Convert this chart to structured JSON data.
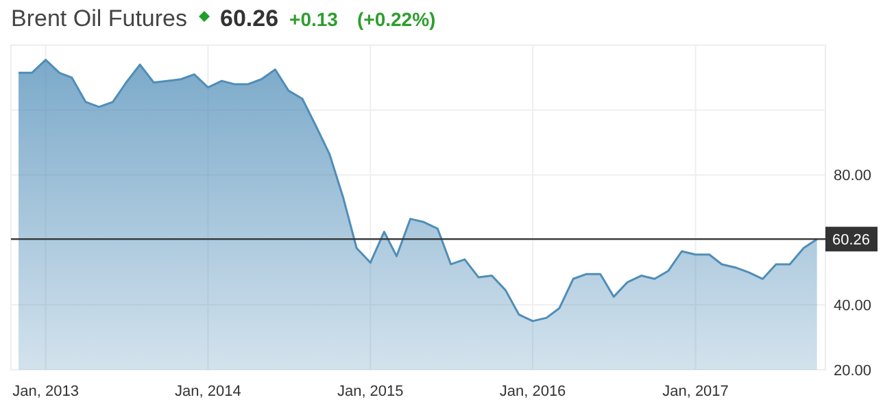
{
  "chart_data": {
    "type": "area",
    "title": "Brent Oil Futures",
    "annotations": [
      "60.26",
      "+0.13",
      "(+0.22%)"
    ],
    "x": [
      "2012-11",
      "2012-12",
      "2013-01",
      "2013-02",
      "2013-03",
      "2013-04",
      "2013-05",
      "2013-06",
      "2013-07",
      "2013-08",
      "2013-09",
      "2013-10",
      "2013-11",
      "2013-12",
      "2014-01",
      "2014-02",
      "2014-03",
      "2014-04",
      "2014-05",
      "2014-06",
      "2014-07",
      "2014-08",
      "2014-09",
      "2014-10",
      "2014-11",
      "2014-12",
      "2015-01",
      "2015-02",
      "2015-03",
      "2015-04",
      "2015-05",
      "2015-06",
      "2015-07",
      "2015-08",
      "2015-09",
      "2015-10",
      "2015-11",
      "2015-12",
      "2016-01",
      "2016-02",
      "2016-03",
      "2016-04",
      "2016-05",
      "2016-06",
      "2016-07",
      "2016-08",
      "2016-09",
      "2016-10",
      "2016-11",
      "2016-12",
      "2017-01",
      "2017-02",
      "2017-03",
      "2017-04",
      "2017-05",
      "2017-06",
      "2017-07",
      "2017-08",
      "2017-09",
      "2017-10"
    ],
    "series": [
      {
        "color": "#4f8db8",
        "values": [
          111.5,
          111.5,
          115.5,
          111.5,
          110,
          102.5,
          101,
          102.5,
          108.5,
          114,
          108.5,
          109,
          109.5,
          111,
          107,
          109,
          108,
          108,
          109.5,
          112.5,
          106,
          103.5,
          95,
          86.5,
          73,
          57.5,
          53,
          62.5,
          55,
          66.5,
          65.5,
          63.5,
          52.5,
          54,
          48.5,
          49,
          44.5,
          37,
          35,
          36,
          39,
          48,
          49.5,
          49.5,
          42.5,
          47,
          49,
          48,
          50.5,
          56.5,
          55.5,
          55.5,
          52.5,
          51.5,
          50,
          48,
          52.5,
          52.5,
          57.5,
          60.26
        ]
      }
    ],
    "xlim": [
      "2012-10-15",
      "2017-10-20"
    ],
    "xticks": [
      {
        "value": "2013-01",
        "label": "Jan, 2013"
      },
      {
        "value": "2014-01",
        "label": "Jan, 2014"
      },
      {
        "value": "2015-01",
        "label": "Jan, 2015"
      },
      {
        "value": "2016-01",
        "label": "Jan, 2016"
      },
      {
        "value": "2017-01",
        "label": "Jan, 2017"
      }
    ],
    "ylim": [
      20,
      120
    ],
    "yticks": [
      {
        "value": 20,
        "label": "20.00"
      },
      {
        "value": 40,
        "label": "40.00"
      },
      {
        "value": 60,
        "label": null
      },
      {
        "value": 80,
        "label": "80.00"
      },
      {
        "value": 100,
        "label": null
      },
      {
        "value": 120,
        "label": null
      }
    ],
    "ref_lines": [
      {
        "axis": "y",
        "value": 60.26,
        "label": "60.26",
        "color": "#333333"
      }
    ],
    "grid": true
  }
}
